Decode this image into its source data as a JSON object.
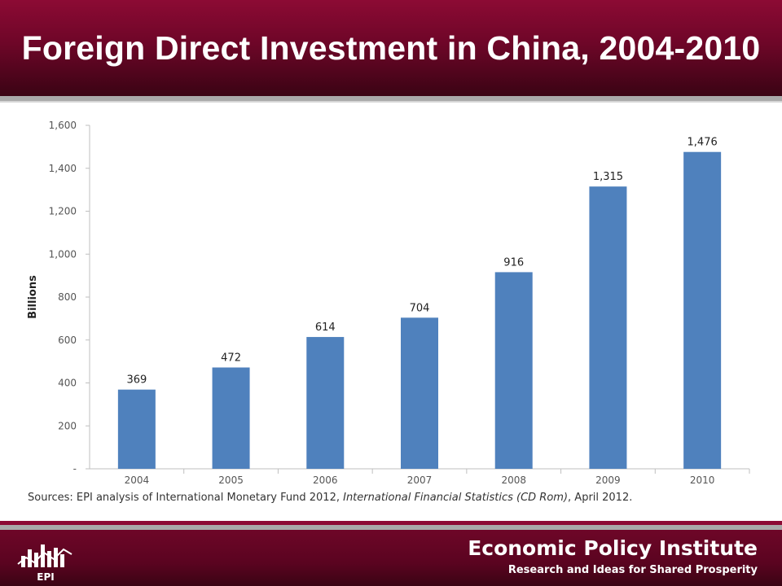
{
  "slide": {
    "title": "Foreign Direct Investment in China, 2004-2010"
  },
  "chart_data": {
    "type": "bar",
    "categories": [
      "2004",
      "2005",
      "2006",
      "2007",
      "2008",
      "2009",
      "2010"
    ],
    "values": [
      369,
      472,
      614,
      704,
      916,
      1315,
      1476
    ],
    "value_labels": [
      "369",
      "472",
      "614",
      "704",
      "916",
      "1,315",
      "1,476"
    ],
    "ylabel": "Billions",
    "ylim": [
      0,
      1600
    ],
    "yticks": [
      0,
      200,
      400,
      600,
      800,
      1000,
      1200,
      1400,
      1600
    ],
    "ytick_labels": [
      "-",
      "200",
      "400",
      "600",
      "800",
      "1,000",
      "1,200",
      "1,400",
      "1,600"
    ],
    "grid": false,
    "bar_color": "#4f81bd"
  },
  "source": {
    "prefix": "Sources:  EPI analysis of International  Monetary Fund 2012, ",
    "italic": "International Financial Statistics (CD Rom)",
    "suffix": ", April 2012."
  },
  "footer": {
    "logo_text": "EPI",
    "org_name": "Economic Policy Institute",
    "tagline": "Research and Ideas for Shared Prosperity"
  },
  "colors": {
    "header": "#8c0a34",
    "stripe": "#a9a9a9",
    "bar": "#4f81bd"
  }
}
